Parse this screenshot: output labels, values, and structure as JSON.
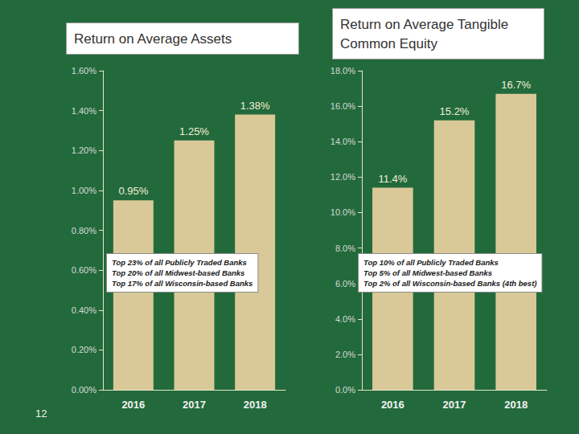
{
  "chart_data": [
    {
      "type": "bar",
      "title": "Return on Average Assets",
      "categories": [
        "2016",
        "2017",
        "2018"
      ],
      "values": [
        0.95,
        1.25,
        1.38
      ],
      "value_labels": [
        "0.95%",
        "1.25%",
        "1.38%"
      ],
      "data_labels": true,
      "color": "#dac998",
      "ylim": [
        0,
        1.6
      ],
      "yticks": [
        {
          "value": 0,
          "label": "0.00%"
        },
        {
          "value": 0.2,
          "label": "0.20%"
        },
        {
          "value": 0.4,
          "label": "0.40%"
        },
        {
          "value": 0.6,
          "label": "0.60%"
        },
        {
          "value": 0.8,
          "label": "0.80%"
        },
        {
          "value": 1.0,
          "label": "1.00%"
        },
        {
          "value": 1.2,
          "label": "1.20%"
        },
        {
          "value": 1.4,
          "label": "1.40%"
        },
        {
          "value": 1.6,
          "label": "1.60%"
        }
      ],
      "grid": false,
      "annotations": [
        "Top 23% of all Publicly Traded Banks",
        "Top 20% of all Midwest-based Banks",
        "Top 17% of all Wisconsin-based Banks"
      ]
    },
    {
      "type": "bar",
      "title": "Return on Average Tangible Common Equity",
      "categories": [
        "2016",
        "2017",
        "2018"
      ],
      "values": [
        11.4,
        15.2,
        16.7
      ],
      "value_labels": [
        "11.4%",
        "15.2%",
        "16.7%"
      ],
      "data_labels": true,
      "color": "#dac998",
      "ylim": [
        0,
        18
      ],
      "yticks": [
        {
          "value": 0,
          "label": "0.0%"
        },
        {
          "value": 2,
          "label": "2.0%"
        },
        {
          "value": 4,
          "label": "4.0%"
        },
        {
          "value": 6,
          "label": "6.0%"
        },
        {
          "value": 8,
          "label": "8.0%"
        },
        {
          "value": 10,
          "label": "10.0%"
        },
        {
          "value": 12,
          "label": "12.0%"
        },
        {
          "value": 14,
          "label": "14.0%"
        },
        {
          "value": 16,
          "label": "16.0%"
        },
        {
          "value": 18,
          "label": "18.0%"
        }
      ],
      "grid": false,
      "annotations": [
        "Top 10% of all Publicly Traded Banks",
        "Top 5% of all Midwest-based Banks",
        "Top 2% of all Wisconsin-based Banks (4th best)"
      ]
    }
  ],
  "page_number": "12"
}
